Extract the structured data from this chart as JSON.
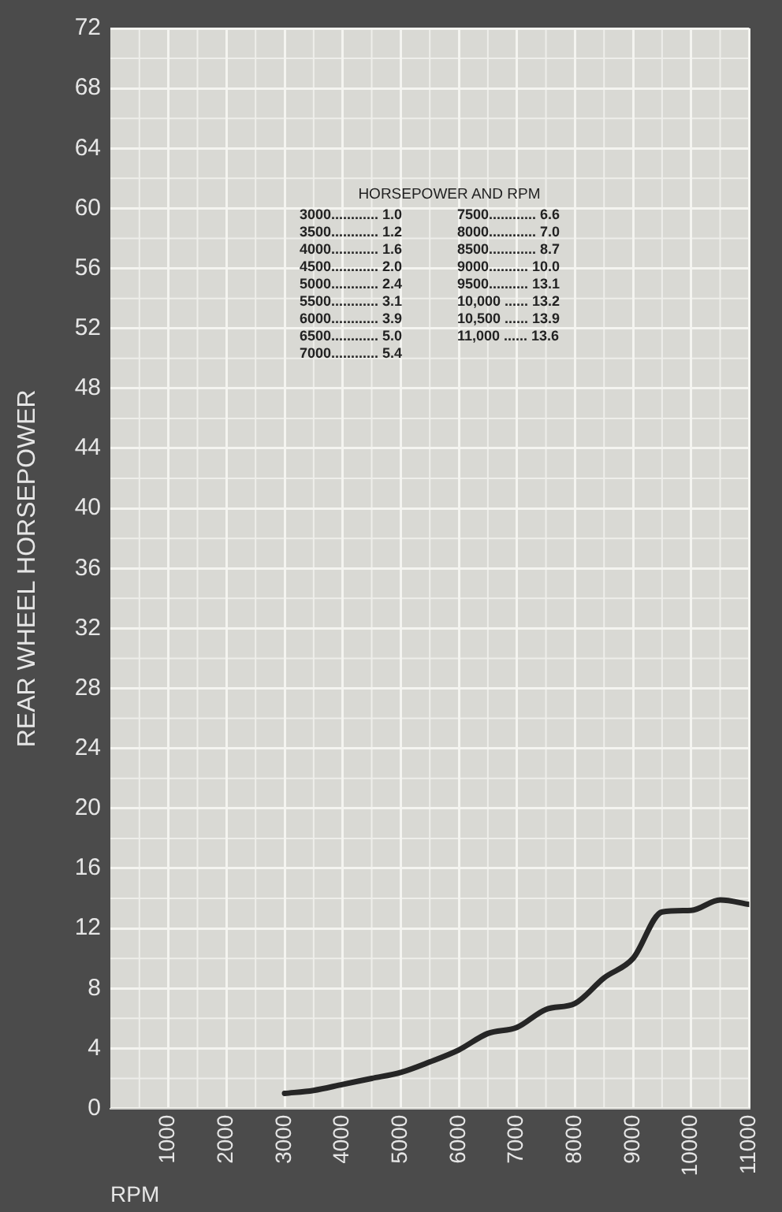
{
  "chart_data": {
    "type": "line",
    "ylabel": "REAR WHEEL HORSEPOWER",
    "xlabel": "RPM",
    "annotations": [
      "HORSEPOWER AND RPM",
      "3000............ 1.0",
      "3500............ 1.2",
      "4000............ 1.6",
      "4500............ 2.0",
      "5000............ 2.4",
      "5500............ 3.1",
      "6000............ 3.9",
      "6500............ 5.0",
      "7000............ 5.4",
      "7500............ 6.6",
      "8000............ 7.0",
      "8500............ 8.7",
      "9000.......... 10.0",
      "9500.......... 13.1",
      "10,000 ...... 13.2",
      "10,500 ...... 13.9",
      "11,000 ...... 13.6"
    ],
    "x": [
      3000,
      3500,
      4000,
      4500,
      5000,
      5500,
      6000,
      6500,
      7000,
      7500,
      8000,
      8500,
      9000,
      9500,
      10000,
      10500,
      11000
    ],
    "series": [
      {
        "color": "#262626",
        "values": [
          1.0,
          1.2,
          1.6,
          2.0,
          2.4,
          3.1,
          3.9,
          5.0,
          5.4,
          6.6,
          7.0,
          8.7,
          10.0,
          13.1,
          13.2,
          13.9,
          13.6
        ]
      }
    ],
    "xlim": [
      0,
      11000
    ],
    "xticks": [
      1000,
      2000,
      3000,
      4000,
      5000,
      6000,
      7000,
      8000,
      9000,
      10000,
      11000
    ],
    "ylim": [
      0,
      72
    ],
    "yticks": [
      0,
      4,
      8,
      12,
      16,
      20,
      24,
      28,
      32,
      36,
      40,
      44,
      48,
      52,
      56,
      60,
      64,
      68,
      72
    ],
    "grid": true,
    "marker": "none",
    "line_style": "solid",
    "legend": false
  }
}
